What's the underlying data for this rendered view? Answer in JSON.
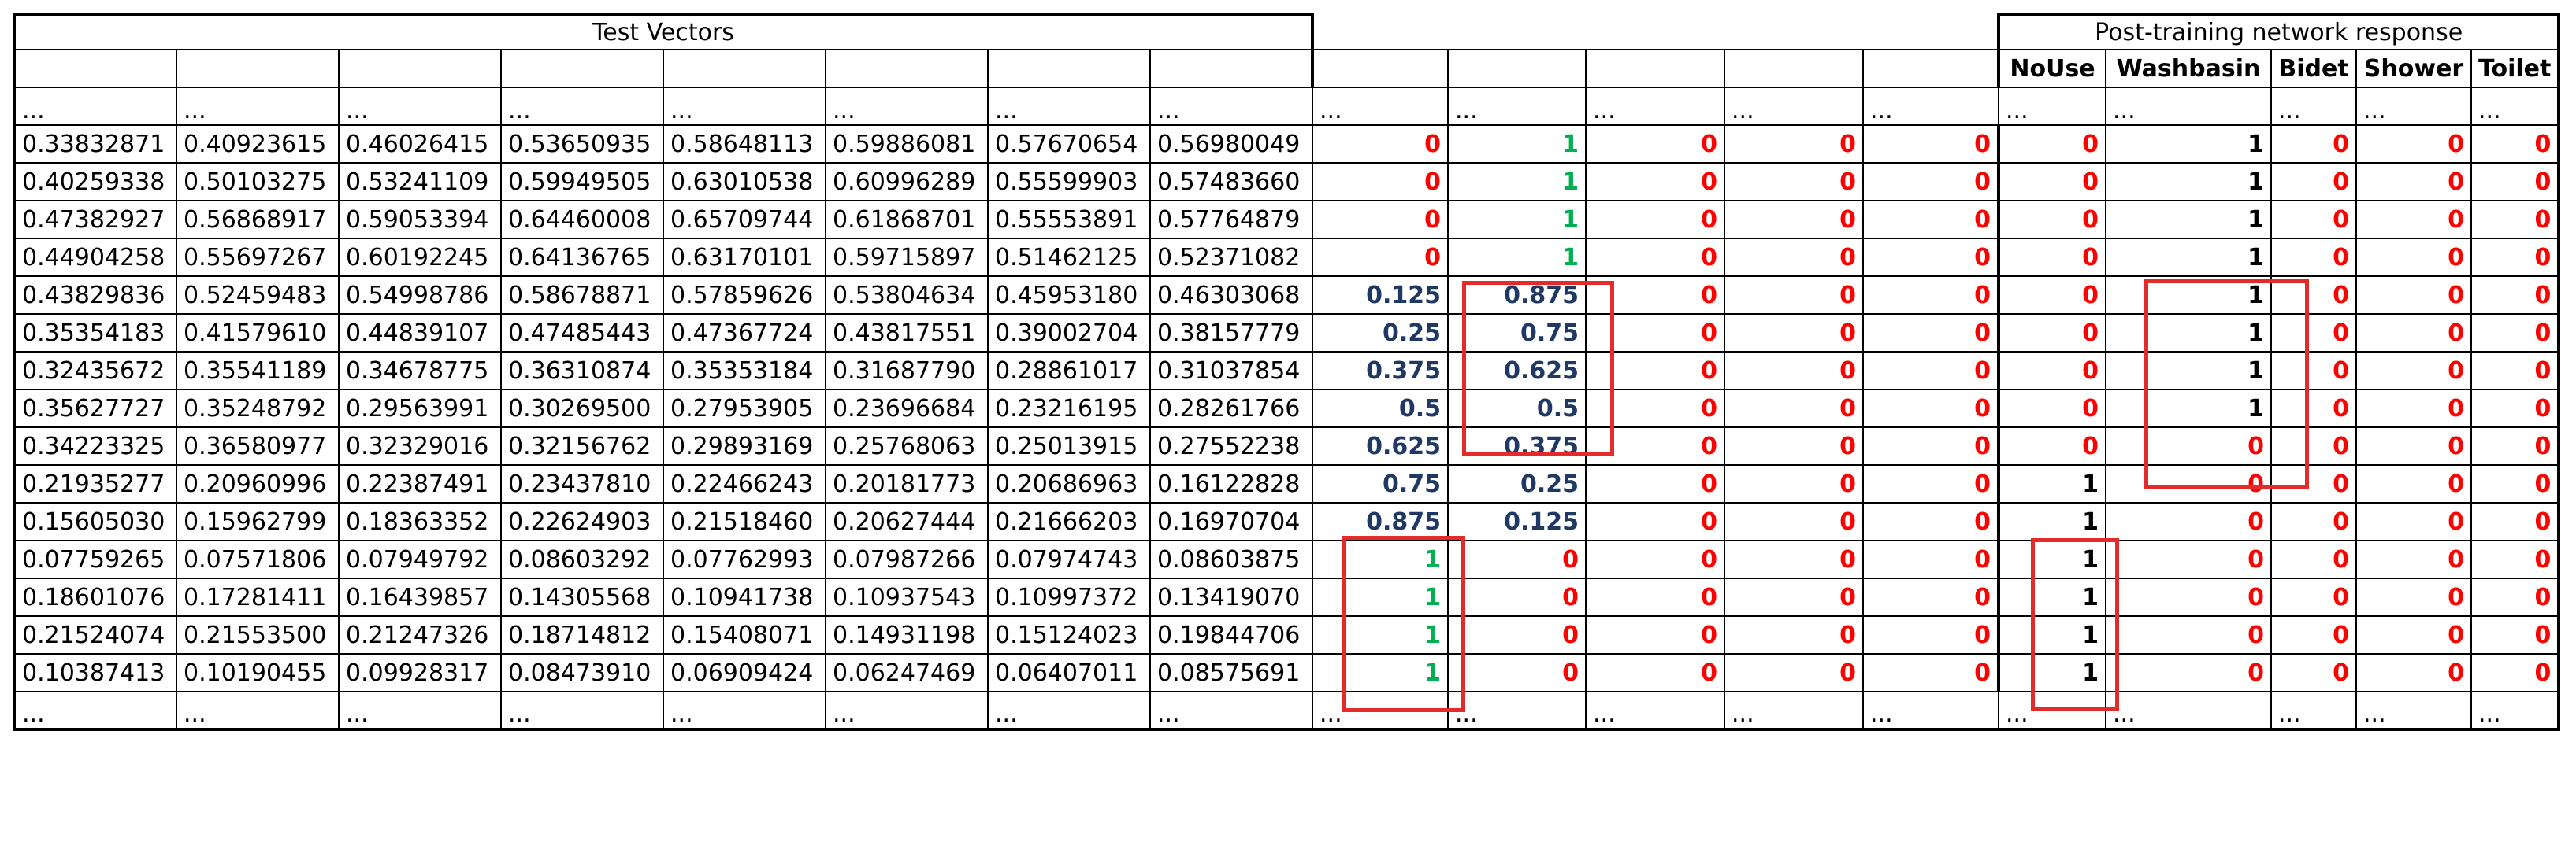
{
  "headers": {
    "test_vectors": "Test Vectors",
    "response": "Post-training network response"
  },
  "response_columns": [
    "NoUse",
    "Washbasin",
    "Bidet",
    "Shower",
    "Toilet"
  ],
  "ellipsis": "...",
  "rows": [
    {
      "vec": [
        "0.33832871",
        "0.40923615",
        "0.46026415",
        "0.53650935",
        "0.58648113",
        "0.59886081",
        "0.57670654",
        "0.56980049"
      ],
      "tgt": [
        "0",
        "1",
        "0",
        "0",
        "0"
      ],
      "resp": [
        "0",
        "1",
        "0",
        "0",
        "0"
      ]
    },
    {
      "vec": [
        "0.40259338",
        "0.50103275",
        "0.53241109",
        "0.59949505",
        "0.63010538",
        "0.60996289",
        "0.55599903",
        "0.57483660"
      ],
      "tgt": [
        "0",
        "1",
        "0",
        "0",
        "0"
      ],
      "resp": [
        "0",
        "1",
        "0",
        "0",
        "0"
      ]
    },
    {
      "vec": [
        "0.47382927",
        "0.56868917",
        "0.59053394",
        "0.64460008",
        "0.65709744",
        "0.61868701",
        "0.55553891",
        "0.57764879"
      ],
      "tgt": [
        "0",
        "1",
        "0",
        "0",
        "0"
      ],
      "resp": [
        "0",
        "1",
        "0",
        "0",
        "0"
      ]
    },
    {
      "vec": [
        "0.44904258",
        "0.55697267",
        "0.60192245",
        "0.64136765",
        "0.63170101",
        "0.59715897",
        "0.51462125",
        "0.52371082"
      ],
      "tgt": [
        "0",
        "1",
        "0",
        "0",
        "0"
      ],
      "resp": [
        "0",
        "1",
        "0",
        "0",
        "0"
      ]
    },
    {
      "vec": [
        "0.43829836",
        "0.52459483",
        "0.54998786",
        "0.58678871",
        "0.57859626",
        "0.53804634",
        "0.45953180",
        "0.46303068"
      ],
      "tgt": [
        "0.125",
        "0.875",
        "0",
        "0",
        "0"
      ],
      "resp": [
        "0",
        "1",
        "0",
        "0",
        "0"
      ]
    },
    {
      "vec": [
        "0.35354183",
        "0.41579610",
        "0.44839107",
        "0.47485443",
        "0.47367724",
        "0.43817551",
        "0.39002704",
        "0.38157779"
      ],
      "tgt": [
        "0.25",
        "0.75",
        "0",
        "0",
        "0"
      ],
      "resp": [
        "0",
        "1",
        "0",
        "0",
        "0"
      ]
    },
    {
      "vec": [
        "0.32435672",
        "0.35541189",
        "0.34678775",
        "0.36310874",
        "0.35353184",
        "0.31687790",
        "0.28861017",
        "0.31037854"
      ],
      "tgt": [
        "0.375",
        "0.625",
        "0",
        "0",
        "0"
      ],
      "resp": [
        "0",
        "1",
        "0",
        "0",
        "0"
      ]
    },
    {
      "vec": [
        "0.35627727",
        "0.35248792",
        "0.29563991",
        "0.30269500",
        "0.27953905",
        "0.23696684",
        "0.23216195",
        "0.28261766"
      ],
      "tgt": [
        "0.5",
        "0.5",
        "0",
        "0",
        "0"
      ],
      "resp": [
        "0",
        "1",
        "0",
        "0",
        "0"
      ]
    },
    {
      "vec": [
        "0.34223325",
        "0.36580977",
        "0.32329016",
        "0.32156762",
        "0.29893169",
        "0.25768063",
        "0.25013915",
        "0.27552238"
      ],
      "tgt": [
        "0.625",
        "0.375",
        "0",
        "0",
        "0"
      ],
      "resp": [
        "0",
        "0",
        "0",
        "0",
        "0"
      ]
    },
    {
      "vec": [
        "0.21935277",
        "0.20960996",
        "0.22387491",
        "0.23437810",
        "0.22466243",
        "0.20181773",
        "0.20686963",
        "0.16122828"
      ],
      "tgt": [
        "0.75",
        "0.25",
        "0",
        "0",
        "0"
      ],
      "resp": [
        "1",
        "0",
        "0",
        "0",
        "0"
      ]
    },
    {
      "vec": [
        "0.15605030",
        "0.15962799",
        "0.18363352",
        "0.22624903",
        "0.21518460",
        "0.20627444",
        "0.21666203",
        "0.16970704"
      ],
      "tgt": [
        "0.875",
        "0.125",
        "0",
        "0",
        "0"
      ],
      "resp": [
        "1",
        "0",
        "0",
        "0",
        "0"
      ]
    },
    {
      "vec": [
        "0.07759265",
        "0.07571806",
        "0.07949792",
        "0.08603292",
        "0.07762993",
        "0.07987266",
        "0.07974743",
        "0.08603875"
      ],
      "tgt": [
        "1",
        "0",
        "0",
        "0",
        "0"
      ],
      "resp": [
        "1",
        "0",
        "0",
        "0",
        "0"
      ]
    },
    {
      "vec": [
        "0.18601076",
        "0.17281411",
        "0.16439857",
        "0.14305568",
        "0.10941738",
        "0.10937543",
        "0.10997372",
        "0.13419070"
      ],
      "tgt": [
        "1",
        "0",
        "0",
        "0",
        "0"
      ],
      "resp": [
        "1",
        "0",
        "0",
        "0",
        "0"
      ]
    },
    {
      "vec": [
        "0.21524074",
        "0.21553500",
        "0.21247326",
        "0.18714812",
        "0.15408071",
        "0.14931198",
        "0.15124023",
        "0.19844706"
      ],
      "tgt": [
        "1",
        "0",
        "0",
        "0",
        "0"
      ],
      "resp": [
        "1",
        "0",
        "0",
        "0",
        "0"
      ]
    },
    {
      "vec": [
        "0.10387413",
        "0.10190455",
        "0.09928317",
        "0.08473910",
        "0.06909424",
        "0.06247469",
        "0.06407011",
        "0.08575691"
      ],
      "tgt": [
        "1",
        "0",
        "0",
        "0",
        "0"
      ],
      "resp": [
        "1",
        "0",
        "0",
        "0",
        "0"
      ]
    }
  ],
  "colors": {
    "zero": "#ff0000",
    "target_one": "#00b050",
    "target_fraction": "#1f3864",
    "response_one": "#000000",
    "highlight": "#e32b2b"
  }
}
